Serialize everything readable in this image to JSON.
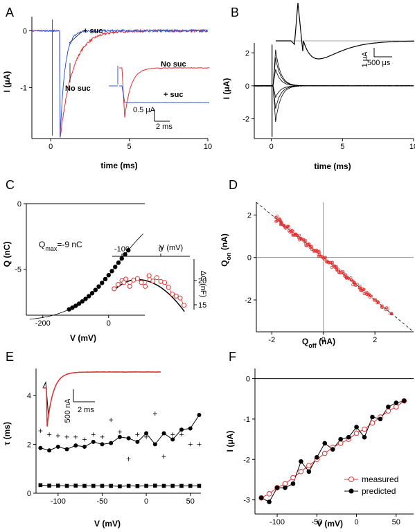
{
  "chart_data": [
    {
      "panel": "A",
      "type": "line",
      "xlabel": "time (ms)",
      "ylabel": "I (μA)",
      "xlim": [
        -1.2,
        10
      ],
      "ylim": [
        -1.9,
        0.25
      ],
      "xticks": [
        0,
        5,
        10
      ],
      "yticks": [
        0,
        -1
      ],
      "series": [
        {
          "name": "+ suc",
          "color": "#2f55d8",
          "tau_ms": 0.3
        },
        {
          "name": "No suc",
          "color": "#e03030",
          "tau_ms": 0.8
        }
      ],
      "annotations": [
        "+ suc",
        "No suc"
      ],
      "inset": {
        "labels": [
          "No suc",
          "+ suc"
        ],
        "scalebar": [
          "0.5 μA",
          "2 ms"
        ]
      }
    },
    {
      "panel": "B",
      "type": "line",
      "xlabel": "time (ms)",
      "ylabel": "I (μA)",
      "xlim": [
        -1.2,
        10
      ],
      "ylim": [
        -3.2,
        2.6
      ],
      "xticks": [
        0,
        5,
        10
      ],
      "yticks": [
        2,
        0,
        -2
      ],
      "series": [
        {
          "peaks": [
            2.2,
            1.7,
            1.0,
            -0.7,
            -1.4,
            -2.2
          ],
          "color": "#000000"
        }
      ],
      "inset": {
        "scalebar": [
          "1 μA",
          "500 μs"
        ]
      }
    },
    {
      "panel": "C",
      "type": "scatter",
      "xlabel": "V (mV)",
      "ylabel": "Q (nC)",
      "xlim": [
        -250,
        110
      ],
      "ylim": [
        -8.5,
        0
      ],
      "xticks": [
        -200,
        0
      ],
      "yticks": [
        0,
        -5
      ],
      "annotation": "Qmax=-9 nC",
      "fit": {
        "qmax": -9,
        "vhalf": 30,
        "k": 70
      },
      "x": [
        -120,
        -110,
        -100,
        -90,
        -80,
        -70,
        -60,
        -50,
        -40,
        -30,
        -20,
        -10,
        0,
        10,
        20,
        30,
        40,
        50,
        60
      ],
      "inset": {
        "xlabel": "V (mV)",
        "ylabel": "ΔC (nF)",
        "xticks": [
          -100,
          0
        ],
        "yticks": [
          20,
          15
        ],
        "xlim": [
          -125,
          75
        ],
        "ylim": [
          14,
          25
        ],
        "x": [
          -120,
          -110,
          -100,
          -95,
          -90,
          -80,
          -70,
          -60,
          -50,
          -40,
          -30,
          -20,
          -10,
          0,
          10,
          20,
          30,
          40,
          50,
          60
        ],
        "y": [
          18.3,
          19.2,
          20.0,
          19.6,
          20.3,
          18.8,
          20.1,
          20.4,
          19.6,
          18.8,
          21.0,
          19.9,
          20.6,
          19.8,
          19.6,
          18.6,
          17.2,
          16.8,
          16.4,
          14.9
        ]
      }
    },
    {
      "panel": "D",
      "type": "scatter",
      "xlabel": "Q_off (nA)",
      "ylabel": "Q_on (nA)",
      "xlim": [
        -2.6,
        3.5
      ],
      "ylim": [
        -3.5,
        2.6
      ],
      "xticks": [
        -2,
        0,
        2
      ],
      "yticks": [
        2,
        0,
        -2
      ],
      "identity_line": true,
      "x": [
        -1.85,
        -1.8,
        -1.72,
        -1.66,
        -1.6,
        -1.52,
        -1.45,
        -1.38,
        -1.3,
        -1.22,
        -1.15,
        -1.07,
        -0.98,
        -0.9,
        -0.82,
        -0.74,
        -0.65,
        -0.57,
        -0.48,
        -0.4,
        -0.31,
        -0.22,
        -0.14,
        -0.05,
        0.04,
        0.12,
        0.21,
        0.3,
        0.38,
        0.47,
        0.56,
        0.65,
        0.74,
        0.83,
        0.92,
        1.01,
        1.1,
        1.19,
        1.28,
        1.37,
        1.46,
        1.55,
        1.64,
        1.73,
        1.85,
        1.98,
        2.12,
        2.28,
        2.45,
        2.62
      ],
      "y": [
        1.9,
        1.75,
        1.78,
        1.6,
        1.63,
        1.49,
        1.42,
        1.43,
        1.25,
        1.25,
        1.09,
        1.08,
        0.99,
        0.86,
        0.83,
        0.77,
        0.6,
        0.6,
        0.49,
        0.35,
        0.32,
        0.25,
        0.1,
        0.02,
        -0.01,
        -0.17,
        -0.2,
        -0.27,
        -0.44,
        -0.44,
        -0.56,
        -0.7,
        -0.71,
        -0.84,
        -0.97,
        -0.99,
        -1.1,
        -1.23,
        -1.26,
        -1.38,
        -1.5,
        -1.52,
        -1.67,
        -1.74,
        -1.83,
        -2.0,
        -2.1,
        -2.3,
        -2.42,
        -2.66
      ]
    },
    {
      "panel": "E",
      "type": "line",
      "xlabel": "V (mV)",
      "ylabel": "τ (ms)",
      "xlim": [
        -125,
        62
      ],
      "ylim": [
        0,
        5.1
      ],
      "xticks": [
        -100,
        -50,
        0,
        50
      ],
      "yticks": [
        0,
        2,
        4
      ],
      "x": [
        -120,
        -110,
        -100,
        -90,
        -80,
        -70,
        -60,
        -50,
        -40,
        -30,
        -20,
        -10,
        0,
        10,
        20,
        30,
        40,
        50,
        60
      ],
      "series": [
        {
          "name": "tau_mid",
          "values": [
            1.85,
            1.75,
            1.9,
            1.8,
            1.95,
            1.9,
            2.1,
            2.0,
            2.05,
            2.3,
            2.25,
            2.1,
            2.45,
            2.0,
            2.45,
            2.2,
            2.6,
            2.65,
            3.2
          ]
        },
        {
          "name": "tau_fast",
          "values": [
            0.33,
            0.31,
            0.31,
            0.3,
            0.31,
            0.3,
            0.3,
            0.3,
            0.3,
            0.28,
            0.3,
            0.29,
            0.3,
            0.31,
            0.3,
            0.3,
            0.3,
            0.3,
            0.3
          ]
        },
        {
          "name": "tau_cross",
          "values": [
            2.55,
            2.4,
            2.35,
            2.3,
            2.3,
            2.2,
            2.4,
            2.3,
            3.0,
            2.5,
            1.4,
            2.4,
            2.3,
            3.25,
            1.5,
            2.4,
            2.4,
            2.0,
            2.0
          ]
        }
      ],
      "inset": {
        "scalebar": [
          "500 nA",
          "2 ms"
        ]
      }
    },
    {
      "panel": "F",
      "type": "line",
      "xlabel": "V (mV)",
      "ylabel": "I (μA)",
      "xlim": [
        -128,
        72
      ],
      "ylim": [
        -3.35,
        0.25
      ],
      "xticks": [
        -100,
        -50,
        0,
        50
      ],
      "yticks": [
        0,
        -1,
        -2,
        -3
      ],
      "x": [
        -120,
        -110,
        -100,
        -90,
        -80,
        -70,
        -60,
        -50,
        -40,
        -30,
        -20,
        -10,
        0,
        10,
        20,
        30,
        40,
        50,
        60
      ],
      "series": [
        {
          "name": "measured",
          "values": [
            -2.95,
            -2.85,
            -2.7,
            -2.6,
            -2.45,
            -2.3,
            -2.15,
            -2.0,
            -1.85,
            -1.7,
            -1.6,
            -1.5,
            -1.35,
            -1.25,
            -1.1,
            -0.95,
            -0.8,
            -0.7,
            -0.55
          ]
        },
        {
          "name": "predicted",
          "values": [
            -2.95,
            -3.05,
            -2.7,
            -2.7,
            -2.6,
            -2.05,
            -2.3,
            -1.95,
            -1.6,
            -1.75,
            -1.5,
            -1.45,
            -1.2,
            -1.45,
            -0.95,
            -1.0,
            -0.7,
            -0.6,
            -0.55
          ]
        }
      ]
    }
  ],
  "panels": {
    "A": {
      "label": "A",
      "xlabel": "time (ms)",
      "ylabel": "I (μA)",
      "ann_suc": "+ suc",
      "ann_nosuc": "No suc",
      "inset_nosuc": "No suc",
      "inset_suc": "+ suc",
      "sb_y": "0.5 μA",
      "sb_x": "2 ms"
    },
    "B": {
      "label": "B",
      "xlabel": "time (ms)",
      "ylabel": "I (μA)",
      "sb_y": "1 μA",
      "sb_x": "500 μs"
    },
    "C": {
      "label": "C",
      "xlabel": "V (mV)",
      "ylabel": "Q (nC)",
      "qmax_text": "Q",
      "qmax_sub": "max",
      "qmax_rest": "=-9 nC",
      "inset_xlabel": "V (mV)",
      "inset_ylabel": "ΔC (nF)"
    },
    "D": {
      "label": "D",
      "xlabel": "Q",
      "xlabel_sub": "off",
      "xlabel_rest": " (nA)",
      "ylabel": "Q",
      "ylabel_sub": "on",
      "ylabel_rest": " (nA)"
    },
    "E": {
      "label": "E",
      "xlabel": "V (mV)",
      "ylabel": "τ (ms)",
      "sb_y": "500 nA",
      "sb_x": "2 ms"
    },
    "F": {
      "label": "F",
      "xlabel": "V (mV)",
      "ylabel": "I (μA)",
      "legend_measured": "measured",
      "legend_predicted": "predicted"
    }
  },
  "colors": {
    "blue": "#2f55d8",
    "red": "#e03030",
    "black": "#000000",
    "grey": "#808080"
  }
}
